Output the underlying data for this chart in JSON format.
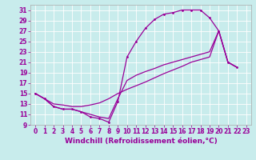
{
  "bg_color": "#c8ecec",
  "line_color": "#990099",
  "xlim": [
    -0.5,
    23.5
  ],
  "ylim": [
    9,
    32
  ],
  "xticks": [
    0,
    1,
    2,
    3,
    4,
    5,
    6,
    7,
    8,
    9,
    10,
    11,
    12,
    13,
    14,
    15,
    16,
    17,
    18,
    19,
    20,
    21,
    22,
    23
  ],
  "yticks": [
    9,
    11,
    13,
    15,
    17,
    19,
    21,
    23,
    25,
    27,
    29,
    31
  ],
  "xlabel": "Windchill (Refroidissement éolien,°C)",
  "xlabel_fontsize": 6.5,
  "tick_fontsize": 5.5,
  "curve1_x": [
    0,
    1,
    2,
    3,
    4,
    5,
    6,
    7,
    8,
    9,
    10,
    11,
    12,
    13,
    14,
    15,
    16,
    17,
    18,
    19,
    20,
    21,
    22
  ],
  "curve1_y": [
    15,
    14,
    12.5,
    12,
    12,
    11.5,
    10.5,
    10.2,
    9.5,
    13.5,
    22,
    25,
    27.5,
    29.2,
    30.2,
    30.5,
    31,
    31,
    31,
    29.5,
    27,
    21,
    20
  ],
  "curve2_x": [
    0,
    1,
    2,
    3,
    4,
    5,
    6,
    7,
    8,
    9,
    10,
    11,
    12,
    13,
    14,
    15,
    16,
    17,
    18,
    19,
    20,
    21,
    22
  ],
  "curve2_y": [
    15,
    14,
    13,
    12.8,
    12.5,
    12.5,
    12.8,
    13.2,
    14,
    15,
    15.8,
    16.5,
    17.2,
    18,
    18.8,
    19.5,
    20.2,
    21,
    21.5,
    22,
    27,
    21,
    20
  ],
  "curve3_x": [
    0,
    1,
    2,
    3,
    4,
    5,
    6,
    7,
    8,
    9,
    10,
    11,
    12,
    13,
    14,
    15,
    16,
    17,
    18,
    19,
    20,
    21,
    22
  ],
  "curve3_y": [
    15,
    14,
    12.5,
    12,
    12,
    11.5,
    11,
    10.5,
    10.2,
    14,
    17.5,
    18.5,
    19.2,
    19.8,
    20.5,
    21,
    21.5,
    22,
    22.5,
    23,
    27,
    21,
    20
  ]
}
